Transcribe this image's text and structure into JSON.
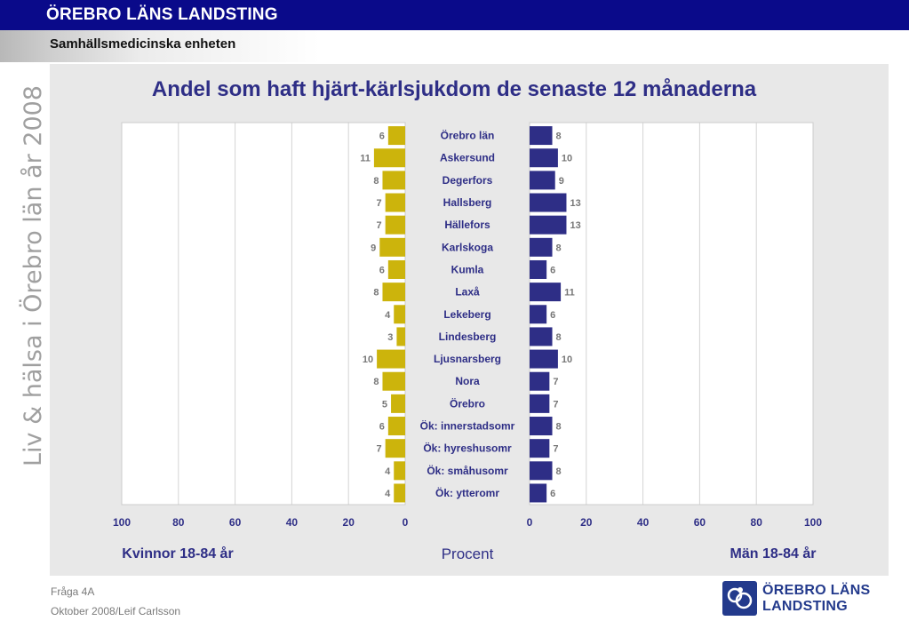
{
  "header": {
    "org_title": "ÖREBRO LÄNS LANDSTING",
    "unit": "Samhällsmedicinska enheten"
  },
  "side_label": "Liv & hälsa i Örebro län år 2008",
  "footer": {
    "question": "Fråga 4A",
    "date_author": "Oktober 2008/Leif Carlsson"
  },
  "logo": {
    "line1": "ÖREBRO LÄNS",
    "line2": "LANDSTING"
  },
  "chart_data": {
    "type": "bar",
    "orientation": "horizontal",
    "layout": "butterfly",
    "title": "Andel som haft hjärt-kärlsjukdom de senaste 12 månaderna",
    "xlabel": "Procent",
    "categories": [
      "Örebro län",
      "Askersund",
      "Degerfors",
      "Hallsberg",
      "Hällefors",
      "Karlskoga",
      "Kumla",
      "Laxå",
      "Lekeberg",
      "Lindesberg",
      "Ljusnarsberg",
      "Nora",
      "Örebro",
      "Ök: innerstadsomr",
      "Ök: hyreshusomr",
      "Ök: småhusomr",
      "Ök: ytteromr"
    ],
    "series": [
      {
        "name": "Kvinnor 18-84 år",
        "side": "left",
        "values": [
          6,
          11,
          8,
          7,
          7,
          9,
          6,
          8,
          4,
          3,
          10,
          8,
          5,
          6,
          7,
          4,
          4
        ]
      },
      {
        "name": "Män 18-84 år",
        "side": "right",
        "values": [
          8,
          10,
          9,
          13,
          13,
          8,
          6,
          11,
          6,
          8,
          10,
          7,
          7,
          8,
          7,
          8,
          6
        ]
      }
    ],
    "xlim": [
      0,
      100
    ],
    "ticks": [
      "100",
      "80",
      "60",
      "40",
      "20",
      "0"
    ],
    "right_ticks": [
      "0",
      "20",
      "40",
      "60",
      "80",
      "100"
    ],
    "grid": true,
    "colors": {
      "women": "#ccb40c",
      "men": "#2e2e86",
      "title": "#2e2e86",
      "category": "#2e2e86"
    }
  }
}
